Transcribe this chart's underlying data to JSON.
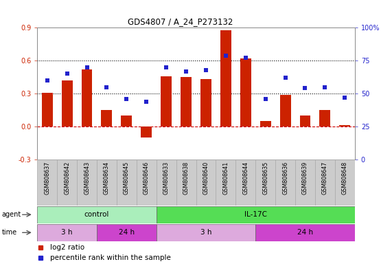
{
  "title": "GDS4807 / A_24_P273132",
  "samples": [
    "GSM808637",
    "GSM808642",
    "GSM808643",
    "GSM808634",
    "GSM808645",
    "GSM808646",
    "GSM808633",
    "GSM808638",
    "GSM808640",
    "GSM808641",
    "GSM808644",
    "GSM808635",
    "GSM808636",
    "GSM808639",
    "GSM808647",
    "GSM808648"
  ],
  "log2_ratio": [
    0.31,
    0.42,
    0.52,
    0.15,
    0.1,
    -0.1,
    0.46,
    0.45,
    0.43,
    0.88,
    0.62,
    0.05,
    0.29,
    0.1,
    0.15,
    0.01
  ],
  "percentile": [
    60,
    65,
    70,
    55,
    46,
    44,
    70,
    67,
    68,
    79,
    77,
    46,
    62,
    54,
    55,
    47
  ],
  "bar_color": "#cc2200",
  "dot_color": "#2222cc",
  "yticks_left": [
    -0.3,
    0.0,
    0.3,
    0.6,
    0.9
  ],
  "yticks_right": [
    0,
    25,
    50,
    75,
    100
  ],
  "ylim_left": [
    -0.3,
    0.9
  ],
  "ylim_right": [
    0,
    100
  ],
  "hlines": [
    0.3,
    0.6
  ],
  "hline_zero_color": "#cc0000",
  "agent_groups": [
    {
      "label": "control",
      "start": 0,
      "end": 6,
      "color": "#aaeebb"
    },
    {
      "label": "IL-17C",
      "start": 6,
      "end": 16,
      "color": "#55dd55"
    }
  ],
  "time_groups": [
    {
      "label": "3 h",
      "start": 0,
      "end": 3,
      "color": "#ddaadd"
    },
    {
      "label": "24 h",
      "start": 3,
      "end": 6,
      "color": "#cc44cc"
    },
    {
      "label": "3 h",
      "start": 6,
      "end": 11,
      "color": "#ddaadd"
    },
    {
      "label": "24 h",
      "start": 11,
      "end": 16,
      "color": "#cc44cc"
    }
  ],
  "legend_items": [
    {
      "label": "log2 ratio",
      "color": "#cc2200"
    },
    {
      "label": "percentile rank within the sample",
      "color": "#2222cc"
    }
  ],
  "agent_label": "agent",
  "time_label": "time",
  "box_color": "#cccccc",
  "box_edge_color": "#aaaaaa"
}
